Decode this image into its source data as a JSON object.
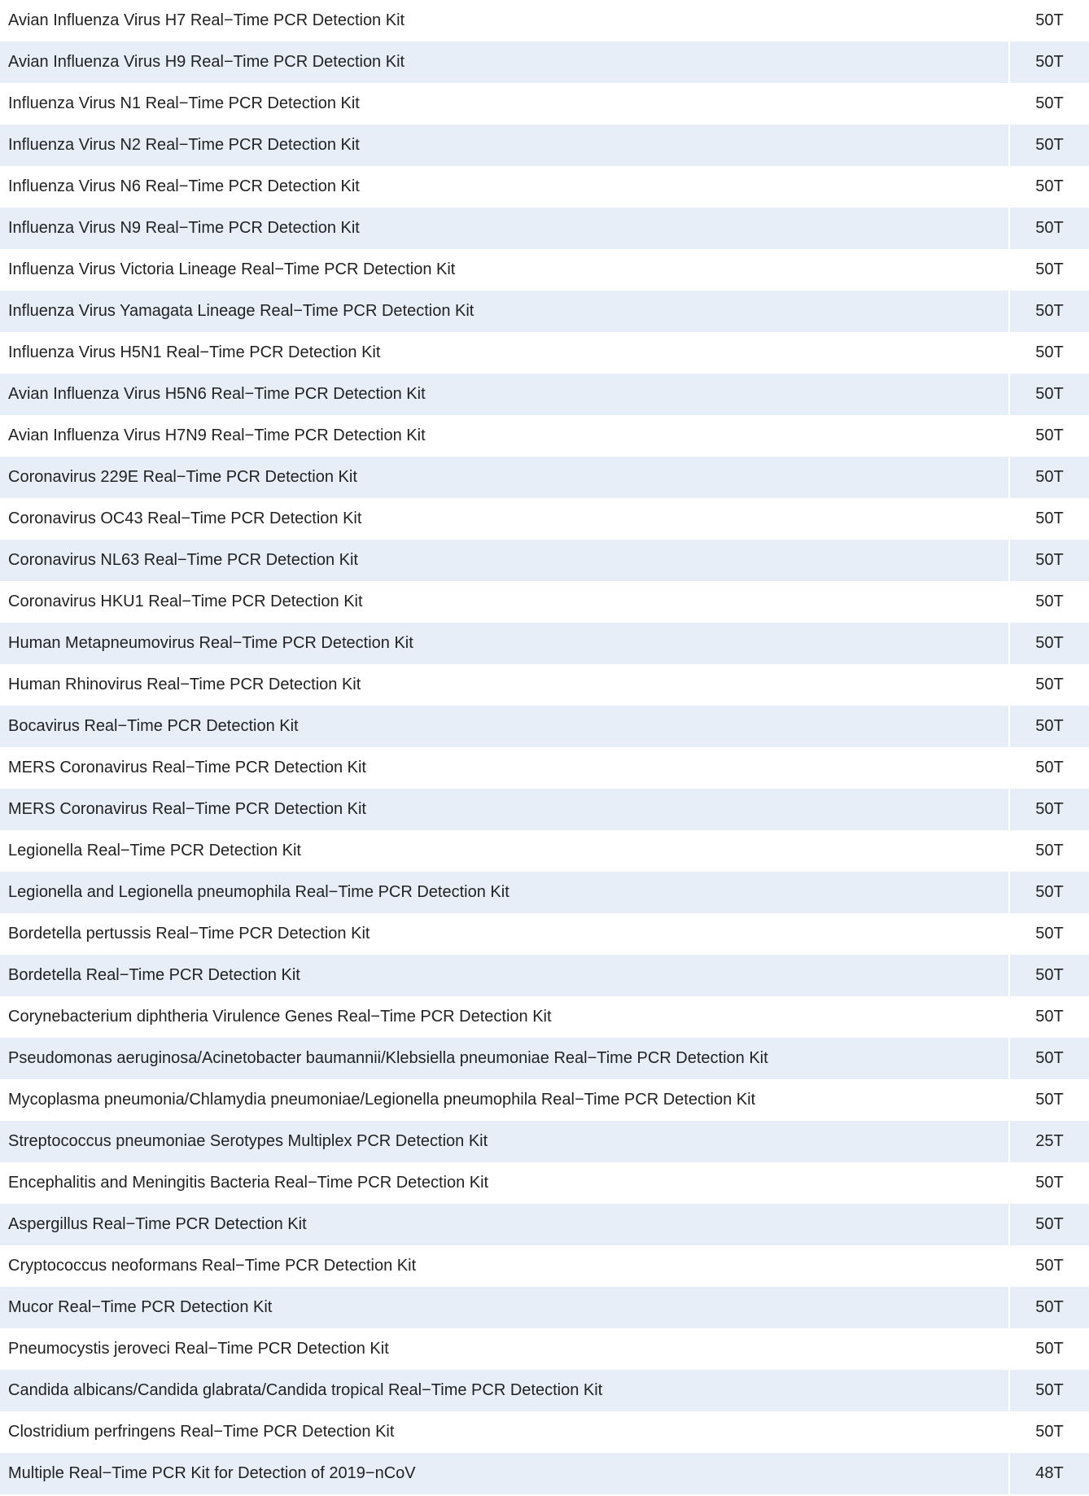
{
  "table": {
    "rows": [
      [
        "Avian Influenza Virus H7 Real−Time PCR Detection Kit",
        "50T"
      ],
      [
        "Avian Influenza Virus H9 Real−Time PCR Detection Kit",
        "50T"
      ],
      [
        "Influenza Virus N1 Real−Time PCR Detection Kit",
        "50T"
      ],
      [
        "Influenza Virus N2 Real−Time PCR Detection Kit",
        "50T"
      ],
      [
        "Influenza Virus N6 Real−Time PCR Detection Kit",
        "50T"
      ],
      [
        "Influenza Virus N9 Real−Time PCR Detection Kit",
        "50T"
      ],
      [
        "Influenza Virus Victoria Lineage Real−Time PCR Detection Kit",
        "50T"
      ],
      [
        "Influenza Virus Yamagata Lineage Real−Time PCR Detection Kit",
        "50T"
      ],
      [
        "Influenza Virus H5N1 Real−Time PCR Detection Kit",
        "50T"
      ],
      [
        "Avian Influenza Virus H5N6 Real−Time PCR Detection Kit",
        "50T"
      ],
      [
        "Avian Influenza Virus H7N9 Real−Time PCR Detection Kit",
        "50T"
      ],
      [
        "Coronavirus 229E Real−Time PCR Detection Kit",
        "50T"
      ],
      [
        "Coronavirus OC43 Real−Time PCR Detection Kit",
        "50T"
      ],
      [
        "Coronavirus NL63 Real−Time PCR Detection Kit",
        "50T"
      ],
      [
        "Coronavirus HKU1 Real−Time PCR Detection Kit",
        "50T"
      ],
      [
        "Human Metapneumovirus Real−Time PCR Detection Kit",
        "50T"
      ],
      [
        "Human Rhinovirus Real−Time PCR Detection Kit",
        "50T"
      ],
      [
        "Bocavirus Real−Time PCR Detection Kit",
        "50T"
      ],
      [
        "MERS Coronavirus Real−Time PCR Detection Kit",
        "50T"
      ],
      [
        "MERS Coronavirus Real−Time PCR Detection Kit",
        "50T"
      ],
      [
        "Legionella Real−Time PCR Detection Kit",
        "50T"
      ],
      [
        "Legionella and Legionella pneumophila Real−Time PCR Detection Kit",
        "50T"
      ],
      [
        "Bordetella pertussis Real−Time PCR Detection Kit",
        "50T"
      ],
      [
        "Bordetella Real−Time PCR Detection Kit",
        "50T"
      ],
      [
        "Corynebacterium diphtheria Virulence Genes Real−Time PCR Detection Kit",
        "50T"
      ],
      [
        "Pseudomonas aeruginosa/Acinetobacter baumannii/Klebsiella pneumoniae Real−Time PCR Detection Kit",
        "50T"
      ],
      [
        "Mycoplasma pneumonia/Chlamydia pneumoniae/Legionella pneumophila Real−Time PCR Detection Kit",
        "50T"
      ],
      [
        "Streptococcus pneumoniae Serotypes Multiplex PCR Detection Kit",
        "25T"
      ],
      [
        "Encephalitis and Meningitis Bacteria Real−Time PCR Detection Kit",
        "50T"
      ],
      [
        "Aspergillus Real−Time PCR Detection Kit",
        "50T"
      ],
      [
        "Cryptococcus neoformans Real−Time PCR Detection Kit",
        "50T"
      ],
      [
        "Mucor Real−Time PCR Detection Kit",
        "50T"
      ],
      [
        "Pneumocystis jeroveci Real−Time PCR Detection Kit",
        "50T"
      ],
      [
        "Candida albicans/Candida glabrata/Candida tropical Real−Time PCR Detection Kit",
        "50T"
      ],
      [
        "Clostridium perfringens Real−Time PCR Detection Kit",
        "50T"
      ],
      [
        "Multiple Real−Time PCR Kit for Detection of 2019−nCoV",
        "48T"
      ]
    ]
  }
}
